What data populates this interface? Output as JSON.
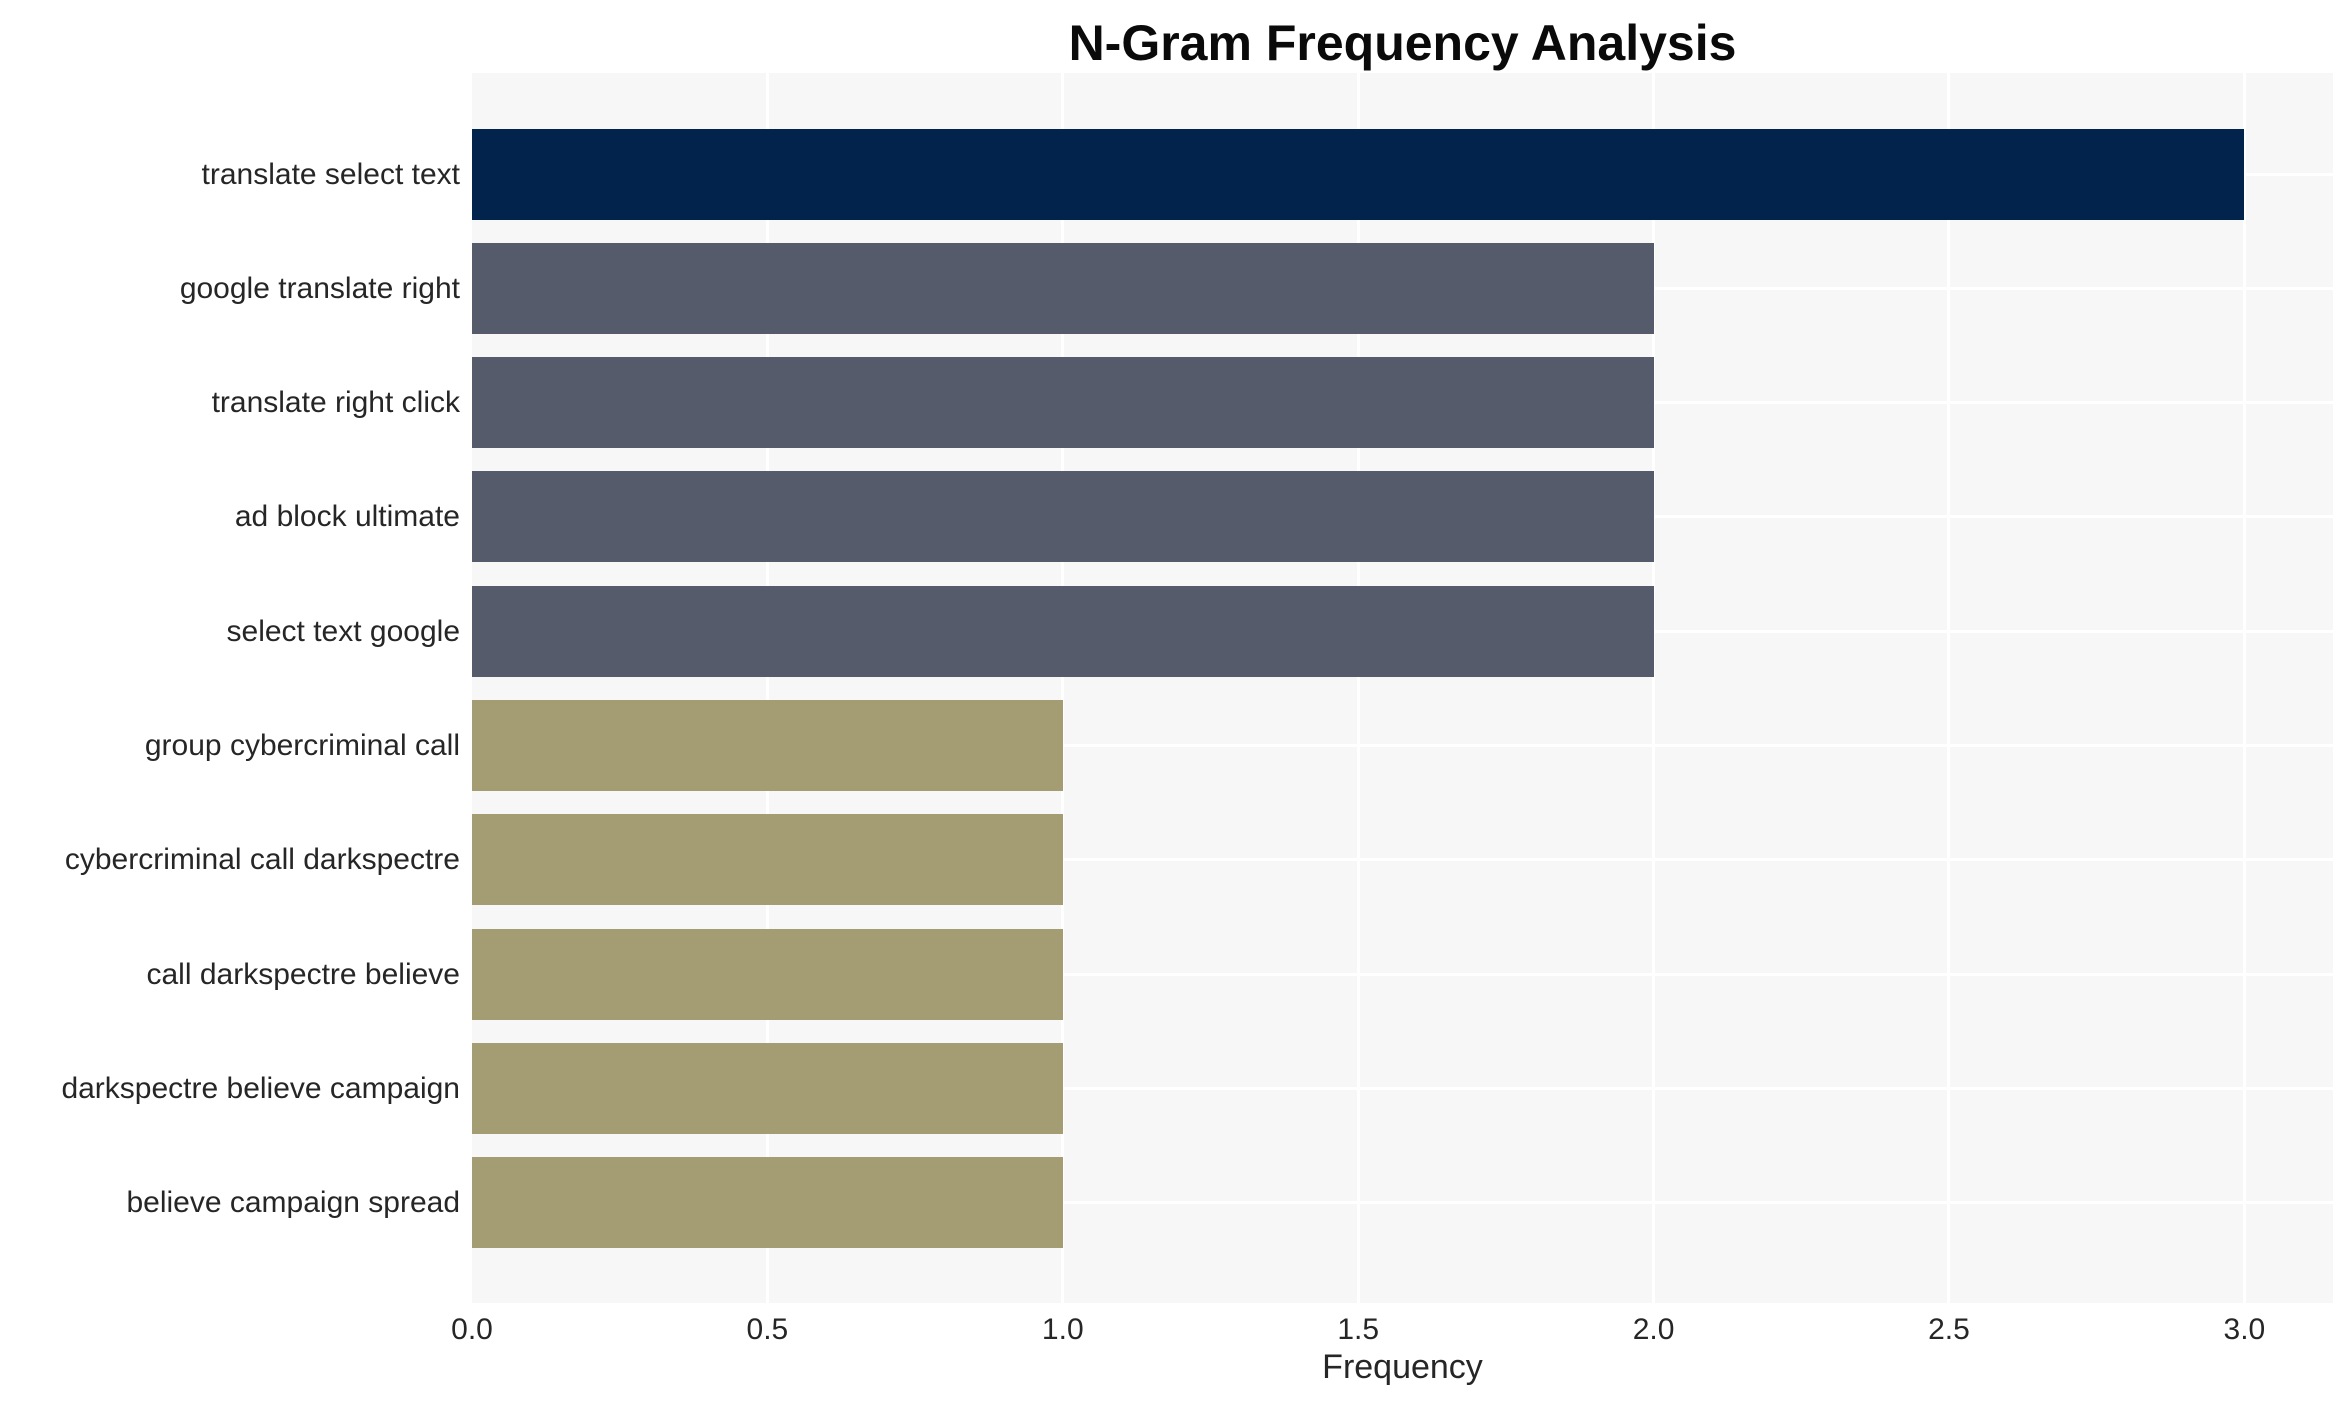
{
  "chart_data": {
    "type": "bar",
    "orientation": "horizontal",
    "title": "N-Gram Frequency Analysis",
    "xlabel": "Frequency",
    "ylabel": "",
    "categories": [
      "translate select text",
      "google translate right",
      "translate right click",
      "ad block ultimate",
      "select text google",
      "group cybercriminal call",
      "cybercriminal call darkspectre",
      "call darkspectre believe",
      "darkspectre believe campaign",
      "believe campaign spread"
    ],
    "values": [
      3,
      2,
      2,
      2,
      2,
      1,
      1,
      1,
      1,
      1
    ],
    "bar_colors": [
      "#02234C",
      "#565B6B",
      "#565B6B",
      "#565B6B",
      "#565B6B",
      "#A49C72",
      "#A49C72",
      "#A49C72",
      "#A49C72",
      "#A49C72"
    ],
    "xticks": [
      0.0,
      0.5,
      1.0,
      1.5,
      2.0,
      2.5,
      3.0
    ],
    "xtick_labels": [
      "0.0",
      "0.5",
      "1.0",
      "1.5",
      "2.0",
      "2.5",
      "3.0"
    ],
    "xlim": [
      0,
      3.15
    ],
    "grid": true,
    "legend_position": "none"
  },
  "style": {
    "figure_bg": "#FFFFFF",
    "plot_bg": "#F7F7F8",
    "grid_color": "#FFFFFF",
    "title_color": "#0A0A0A",
    "tick_label_color": "#262626"
  }
}
